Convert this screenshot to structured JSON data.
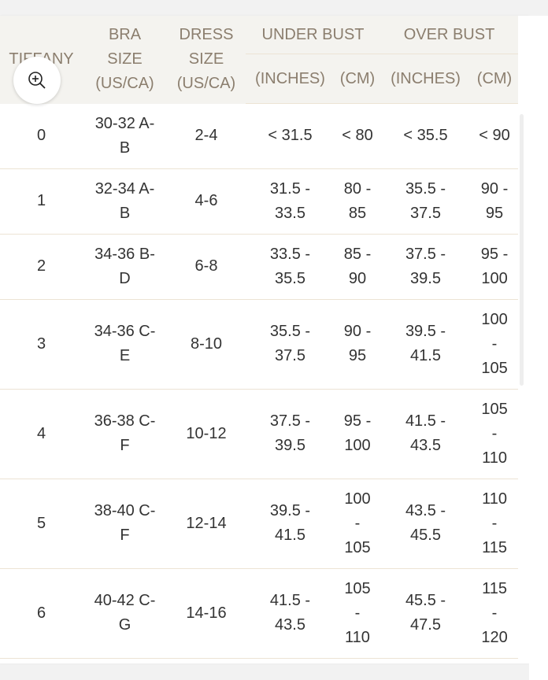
{
  "header": {
    "col1": "TIFFANY",
    "col2": "BRA SIZE (US/CA)",
    "col3": "DRESS SIZE (US/CA)",
    "under_bust": "UNDER BUST",
    "over_bust": "OVER BUST",
    "sub": [
      "(INCHES)",
      "(CM)",
      "(INCHES)",
      "(CM)"
    ]
  },
  "rows": [
    [
      "0",
      "30-32 A-B",
      "2-4",
      "< 31.5",
      "< 80",
      "< 35.5",
      "< 90"
    ],
    [
      "1",
      "32-34 A-B",
      "4-6",
      "31.5 - 33.5",
      "80 - 85",
      "35.5 - 37.5",
      "90 - 95"
    ],
    [
      "2",
      "34-36 B-D",
      "6-8",
      "33.5 - 35.5",
      "85 - 90",
      "37.5 - 39.5",
      "95 - 100"
    ],
    [
      "3",
      "34-36 C-E",
      "8-10",
      "35.5 - 37.5",
      "90 - 95",
      "39.5 - 41.5",
      "100 - 105"
    ],
    [
      "4",
      "36-38 C-F",
      "10-12",
      "37.5 - 39.5",
      "95 - 100",
      "41.5 - 43.5",
      "105 - 110"
    ],
    [
      "5",
      "38-40 C-F",
      "12-14",
      "39.5 - 41.5",
      "100 - 105",
      "43.5 - 45.5",
      "110 - 115"
    ],
    [
      "6",
      "40-42 C-G",
      "14-16",
      "41.5 - 43.5",
      "105 - 110",
      "45.5 - 47.5",
      "115 - 120"
    ]
  ],
  "icons": {
    "zoom": "zoom-in-icon"
  },
  "colors": {
    "header_bg": "#f4f3ef",
    "header_text": "#8b7e6e",
    "divider": "#ece3d4"
  }
}
